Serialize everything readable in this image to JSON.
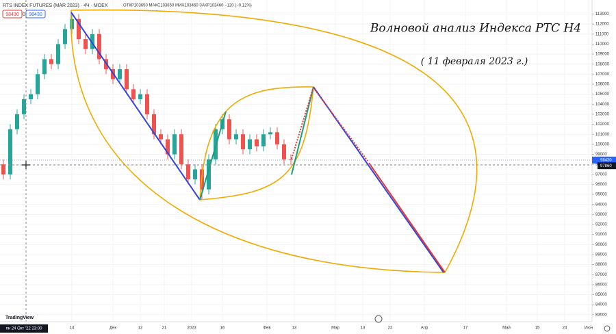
{
  "chart_data": {
    "type": "candlestick",
    "symbol": "RTS INDEX FUTURES (MAR 2023) · 4Ч · MOEX",
    "ohlc_line": "ОТКР103650 МАКС103650 МИН103460 ЗАКР103460 −120 (−0.12%)",
    "bid": 98430,
    "spread": 0,
    "ask": 98430,
    "title": "Волновой анализ Индекса РТС Н4",
    "subtitle": "( 11 февраля 2023 г.)",
    "last_price": 98430,
    "cursor_price": 97860,
    "crosshair_time": "пн 24 Окт '22 23:00",
    "brand": "TradingView",
    "up_color": "#26a69a",
    "down_color": "#ef5350",
    "x": [
      1,
      3,
      5,
      7,
      9,
      11,
      13,
      15,
      17,
      19,
      21,
      23,
      25,
      27,
      29,
      31,
      33,
      35,
      37,
      39,
      41,
      43,
      45,
      47,
      49,
      51,
      53,
      55,
      57,
      59,
      61,
      63,
      65,
      67,
      69,
      71,
      73,
      75,
      77,
      79,
      81,
      83,
      85
    ],
    "open": [
      98000,
      97000,
      101500,
      103000,
      104500,
      105000,
      107000,
      108500,
      108000,
      110000,
      111500,
      112500,
      110500,
      109500,
      111000,
      108500,
      107500,
      106500,
      107500,
      105500,
      104500,
      105000,
      103000,
      101000,
      100500,
      99000,
      101000,
      98000,
      96500,
      97500,
      95500,
      98500,
      101500,
      102500,
      100500,
      101000,
      99500,
      100500,
      99800,
      101000,
      101200,
      100000,
      98500
    ],
    "high": [
      98500,
      102000,
      103500,
      105000,
      105500,
      107500,
      109000,
      109000,
      110500,
      112000,
      113000,
      113000,
      111000,
      111500,
      111500,
      109000,
      108000,
      108000,
      108000,
      106000,
      105500,
      105500,
      103500,
      101500,
      101000,
      101500,
      101500,
      98500,
      98000,
      98000,
      99000,
      102000,
      103000,
      103000,
      101500,
      101500,
      101000,
      101000,
      101500,
      101700,
      101700,
      100500,
      99000
    ],
    "low": [
      96500,
      96500,
      101000,
      102500,
      104000,
      104500,
      106500,
      107500,
      107500,
      109500,
      111000,
      110000,
      109000,
      109000,
      108000,
      107000,
      106000,
      106000,
      105000,
      104000,
      104000,
      102500,
      100500,
      100000,
      98500,
      98500,
      97500,
      96000,
      96000,
      94500,
      95000,
      98000,
      101000,
      100000,
      100000,
      99000,
      99000,
      99300,
      99300,
      100500,
      99500,
      98000,
      97930
    ],
    "close": [
      97000,
      101500,
      103000,
      104500,
      105000,
      107000,
      108500,
      108000,
      110000,
      111500,
      112500,
      110500,
      109500,
      111000,
      108500,
      107500,
      106500,
      107500,
      105500,
      104500,
      105000,
      103000,
      101000,
      100500,
      99000,
      101000,
      98000,
      96500,
      97500,
      95500,
      98500,
      101500,
      102500,
      100500,
      101000,
      99500,
      100500,
      99800,
      101000,
      101200,
      100000,
      98500,
      98430
    ],
    "xlim": [
      0,
      173
    ],
    "xticks": [
      {
        "value": 21,
        "label": "14"
      },
      {
        "value": 33,
        "label": "Дек"
      },
      {
        "value": 41,
        "label": "12"
      },
      {
        "value": 48,
        "label": "21"
      },
      {
        "value": 56,
        "label": "2023"
      },
      {
        "value": 65,
        "label": "16"
      },
      {
        "value": 78,
        "label": "Фев"
      },
      {
        "value": 86,
        "label": "13"
      },
      {
        "value": 98,
        "label": "Мар"
      },
      {
        "value": 106,
        "label": "13"
      },
      {
        "value": 114,
        "label": "22"
      },
      {
        "value": 124,
        "label": "Апр"
      },
      {
        "value": 136,
        "label": "17"
      },
      {
        "value": 148,
        "label": "Май"
      },
      {
        "value": 157,
        "label": "15"
      },
      {
        "value": 165,
        "label": "24"
      },
      {
        "value": 172,
        "label": "Июн"
      }
    ],
    "ylim": [
      82300,
      114400
    ],
    "yticks": [
      83000,
      84000,
      85000,
      86000,
      87000,
      88000,
      89000,
      90000,
      91000,
      92000,
      93000,
      94000,
      95000,
      96000,
      97000,
      98000,
      99000,
      100000,
      101000,
      102000,
      103000,
      104000,
      105000,
      106000,
      107000,
      108000,
      109000,
      110000,
      111000,
      112000,
      113000
    ]
  }
}
